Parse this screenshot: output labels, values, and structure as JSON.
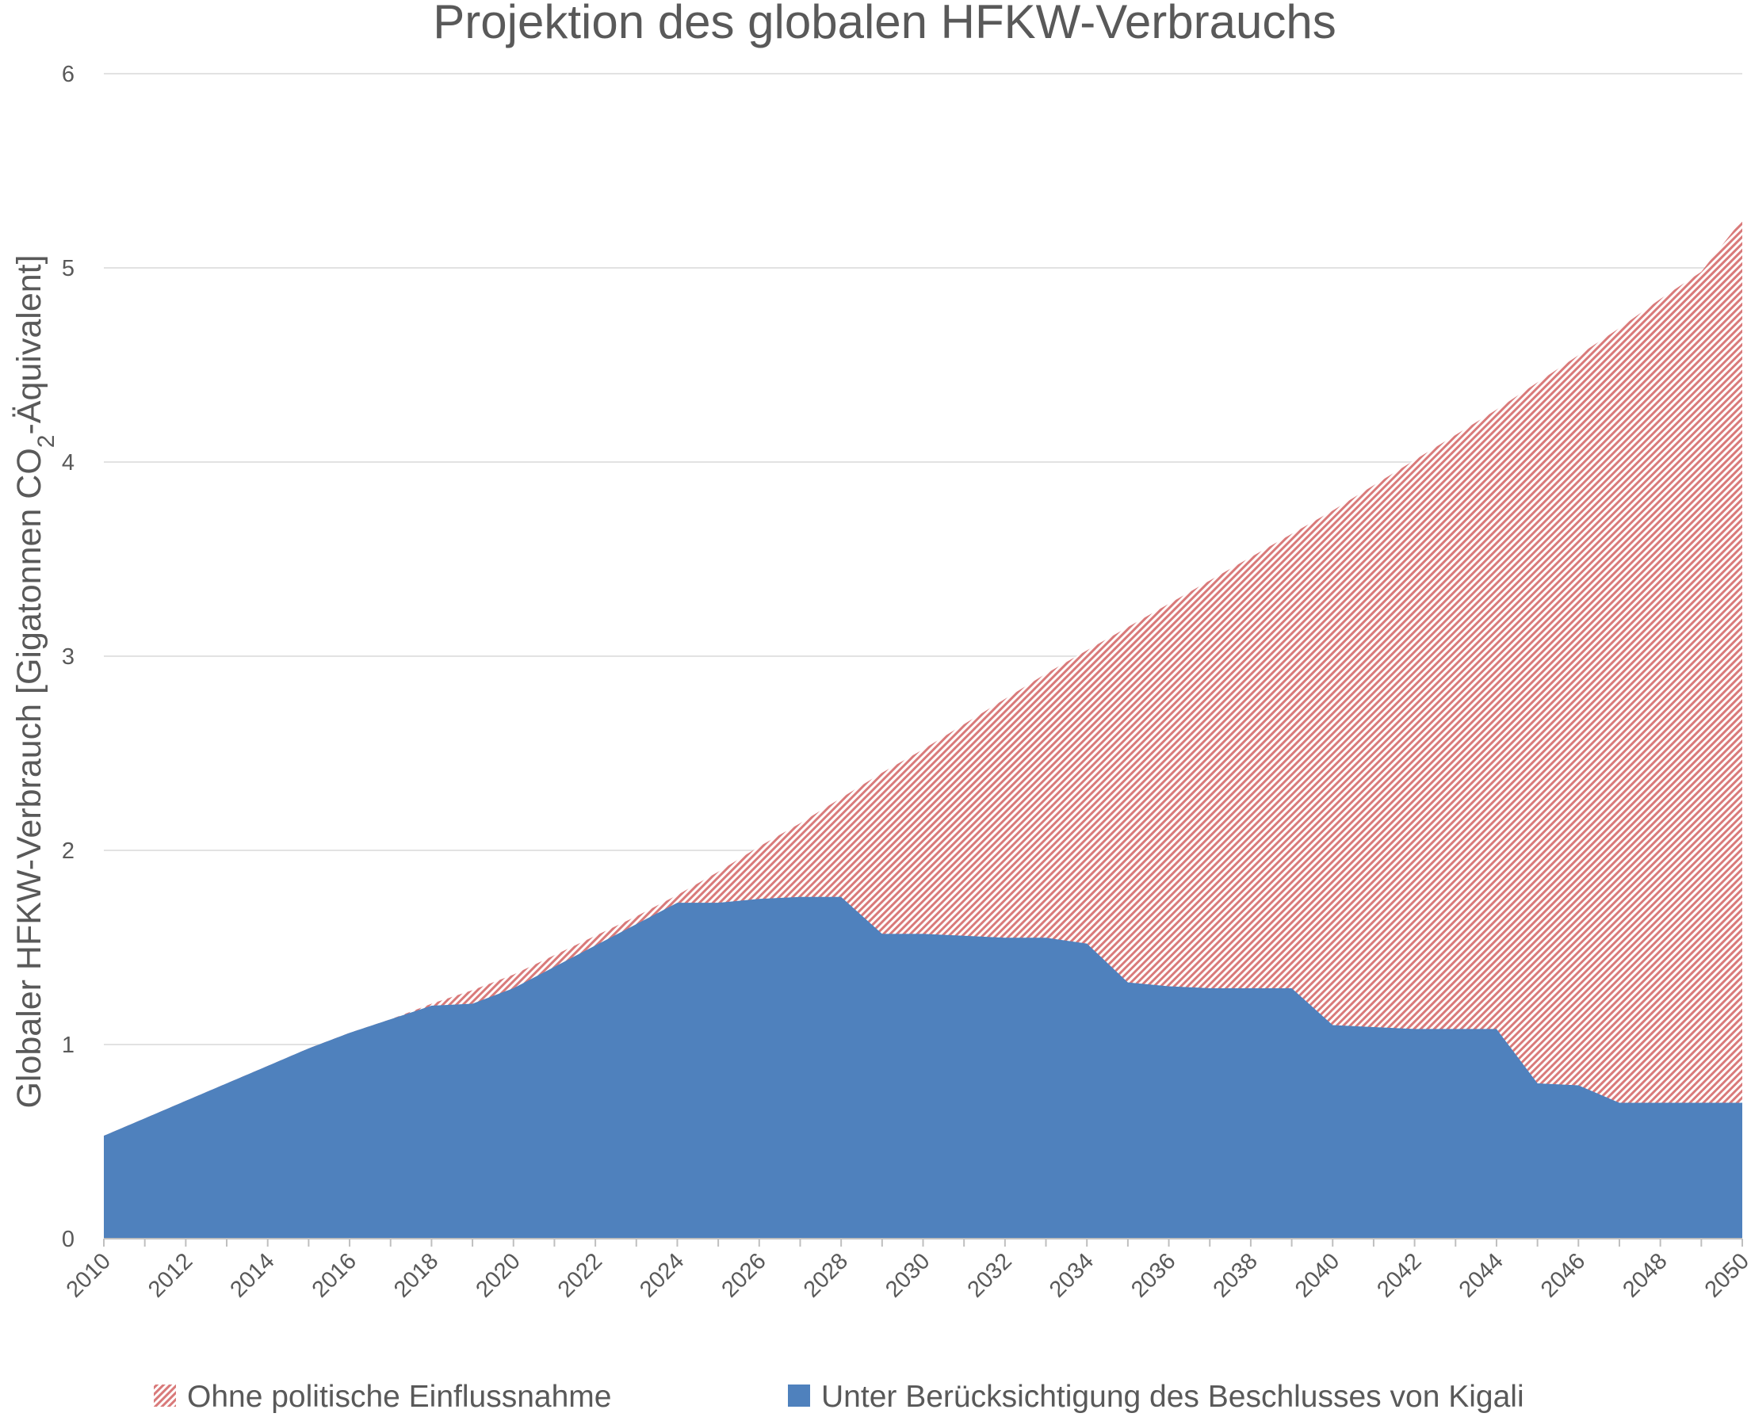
{
  "chart_data": {
    "type": "area",
    "title": "Projektion des globalen HFKW-Verbrauchs",
    "ylabel": "Globaler HFKW-Verbrauch [Gigatonnen CO₂-Äquivalent]",
    "ylabel_parts": {
      "before_sub": "Globaler HFKW-Verbrauch  [Gigatonnen CO",
      "subscript": "2",
      "after_sub": "-Äquivalent]"
    },
    "xlabel": "",
    "ylim": [
      0,
      6
    ],
    "yticks": [
      0,
      1,
      2,
      3,
      4,
      5,
      6
    ],
    "xticks": [
      2010,
      2012,
      2014,
      2016,
      2018,
      2020,
      2022,
      2024,
      2026,
      2028,
      2030,
      2032,
      2034,
      2036,
      2038,
      2040,
      2042,
      2044,
      2046,
      2048,
      2050
    ],
    "x": [
      2010,
      2011,
      2012,
      2013,
      2014,
      2015,
      2016,
      2017,
      2018,
      2019,
      2020,
      2021,
      2022,
      2023,
      2024,
      2025,
      2026,
      2027,
      2028,
      2029,
      2030,
      2031,
      2032,
      2033,
      2034,
      2035,
      2036,
      2037,
      2038,
      2039,
      2040,
      2041,
      2042,
      2043,
      2044,
      2045,
      2046,
      2047,
      2048,
      2049,
      2050
    ],
    "grid": true,
    "legend_position": "bottom",
    "series": [
      {
        "name": "Ohne politische Einflussnahme",
        "fill": "hatched",
        "color": "#e08a8a",
        "values": [
          0.53,
          0.62,
          0.71,
          0.8,
          0.89,
          0.98,
          1.06,
          1.13,
          1.21,
          1.28,
          1.36,
          1.46,
          1.56,
          1.66,
          1.77,
          1.89,
          2.02,
          2.14,
          2.27,
          2.4,
          2.52,
          2.65,
          2.78,
          2.91,
          3.03,
          3.15,
          3.27,
          3.39,
          3.51,
          3.63,
          3.75,
          3.88,
          4.01,
          4.14,
          4.27,
          4.41,
          4.55,
          4.69,
          4.84,
          4.98,
          5.25
        ]
      },
      {
        "name": "Unter Berücksichtigung des Beschlusses von Kigali",
        "fill": "solid",
        "color": "#4f81bd",
        "values": [
          0.53,
          0.62,
          0.71,
          0.8,
          0.89,
          0.98,
          1.06,
          1.13,
          1.2,
          1.21,
          1.29,
          1.4,
          1.51,
          1.62,
          1.73,
          1.73,
          1.75,
          1.76,
          1.76,
          1.57,
          1.57,
          1.56,
          1.55,
          1.55,
          1.52,
          1.32,
          1.3,
          1.29,
          1.29,
          1.29,
          1.1,
          1.09,
          1.08,
          1.08,
          1.08,
          0.8,
          0.79,
          0.7,
          0.7,
          0.7,
          0.7
        ]
      }
    ]
  }
}
